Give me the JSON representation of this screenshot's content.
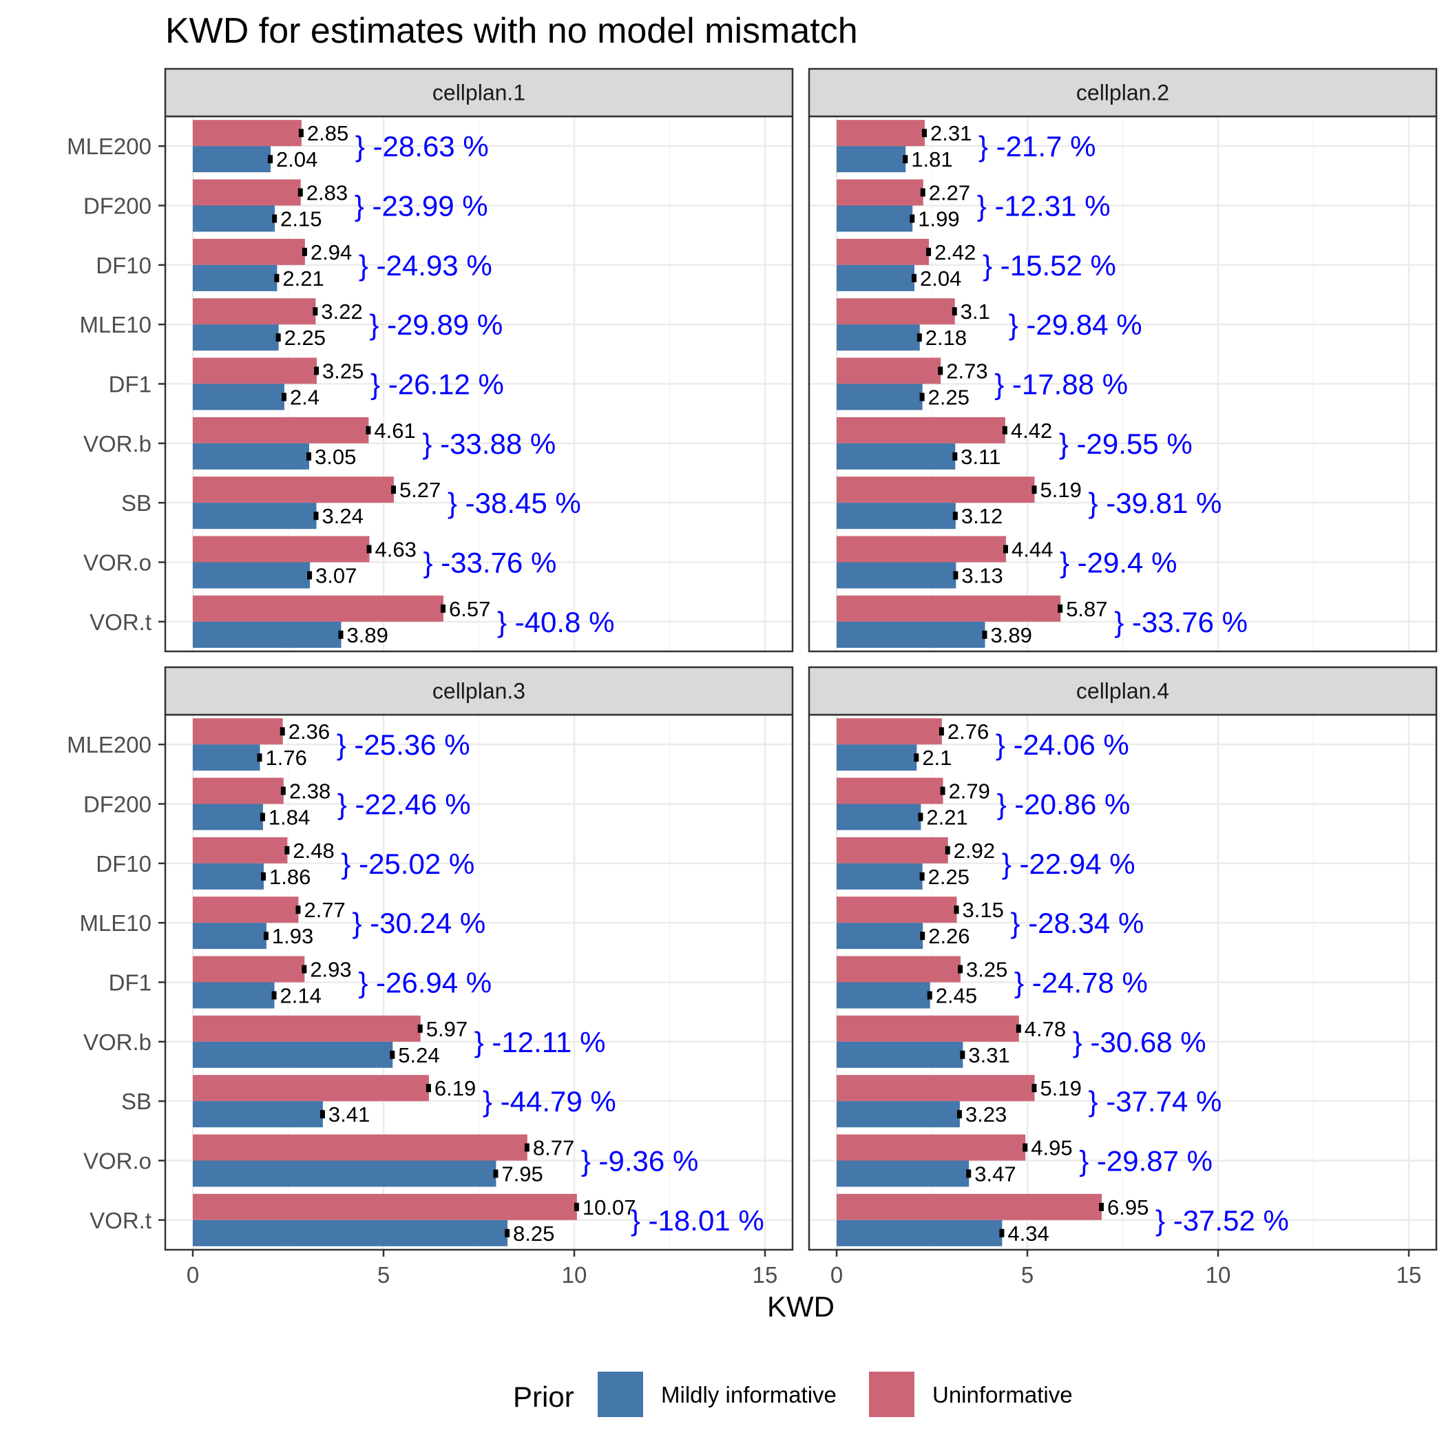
{
  "colors": {
    "uninformative": "#CC6677",
    "mildly_informative": "#4477AA",
    "annotation": "#0000FF",
    "strip_bg": "#D9D9D9",
    "grid_major": "#EBEBEB",
    "grid_minor": "#F5F5F5"
  },
  "chart_data": {
    "type": "bar",
    "orientation": "horizontal",
    "title": "KWD for estimates with no model mismatch",
    "xlabel": "KWD",
    "ylabel": "",
    "xlim": [
      0,
      15
    ],
    "x_ticks": [
      0,
      5,
      10,
      15
    ],
    "grid": true,
    "categories": [
      "MLE200",
      "DF200",
      "DF10",
      "MLE10",
      "DF1",
      "VOR.b",
      "SB",
      "VOR.o",
      "VOR.t"
    ],
    "legend": {
      "title": "Prior",
      "position": "bottom",
      "entries": [
        {
          "key": "mildly_informative",
          "label": "Mildly informative"
        },
        {
          "key": "uninformative",
          "label": "Uninformative"
        }
      ]
    },
    "panels": [
      {
        "label": "cellplan.1",
        "uninformative": [
          2.85,
          2.83,
          2.94,
          3.22,
          3.25,
          4.61,
          5.27,
          4.63,
          6.57
        ],
        "mildly_informative": [
          2.04,
          2.15,
          2.21,
          2.25,
          2.4,
          3.05,
          3.24,
          3.07,
          3.89
        ],
        "pct_change": [
          "-28.63 %",
          "-23.99 %",
          "-24.93 %",
          "-29.89 %",
          "-26.12 %",
          "-33.88 %",
          "-38.45 %",
          "-33.76 %",
          "-40.8 %"
        ]
      },
      {
        "label": "cellplan.2",
        "uninformative": [
          2.31,
          2.27,
          2.42,
          3.1,
          2.73,
          4.42,
          5.19,
          4.44,
          5.87
        ],
        "mildly_informative": [
          1.81,
          1.99,
          2.04,
          2.18,
          2.25,
          3.11,
          3.12,
          3.13,
          3.89
        ],
        "pct_change": [
          "-21.7 %",
          "-12.31 %",
          "-15.52 %",
          "-29.84 %",
          "-17.88 %",
          "-29.55 %",
          "-39.81 %",
          "-29.4 %",
          "-33.76 %"
        ]
      },
      {
        "label": "cellplan.3",
        "uninformative": [
          2.36,
          2.38,
          2.48,
          2.77,
          2.93,
          5.97,
          6.19,
          8.77,
          10.07
        ],
        "mildly_informative": [
          1.76,
          1.84,
          1.86,
          1.93,
          2.14,
          5.24,
          3.41,
          7.95,
          8.25
        ],
        "pct_change": [
          "-25.36 %",
          "-22.46 %",
          "-25.02 %",
          "-30.24 %",
          "-26.94 %",
          "-12.11 %",
          "-44.79 %",
          "-9.36 %",
          "-18.01 %"
        ]
      },
      {
        "label": "cellplan.4",
        "uninformative": [
          2.76,
          2.79,
          2.92,
          3.15,
          3.25,
          4.78,
          5.19,
          4.95,
          6.95
        ],
        "mildly_informative": [
          2.1,
          2.21,
          2.25,
          2.26,
          2.45,
          3.31,
          3.23,
          3.47,
          4.34
        ],
        "pct_change": [
          "-24.06 %",
          "-20.86 %",
          "-22.94 %",
          "-28.34 %",
          "-24.78 %",
          "-30.68 %",
          "-37.74 %",
          "-29.87 %",
          "-37.52 %"
        ]
      }
    ]
  }
}
